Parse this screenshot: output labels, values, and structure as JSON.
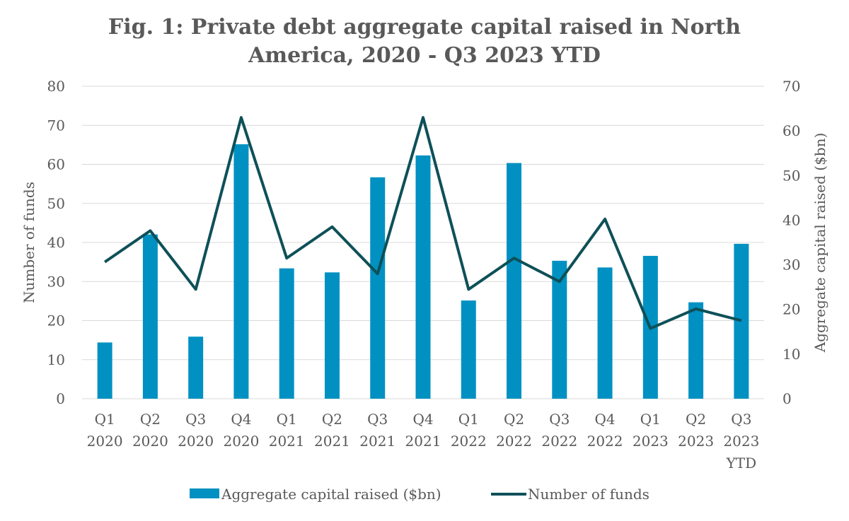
{
  "chart_data": {
    "type": "bar+line",
    "title": [
      "Fig. 1: Private debt aggregate capital raised in North",
      "America, 2020 - Q3 2023 YTD"
    ],
    "categories": [
      [
        "Q1",
        "2020"
      ],
      [
        "Q2",
        "2020"
      ],
      [
        "Q3",
        "2020"
      ],
      [
        "Q4",
        "2020"
      ],
      [
        "Q1",
        "2021"
      ],
      [
        "Q2",
        "2021"
      ],
      [
        "Q3",
        "2021"
      ],
      [
        "Q4",
        "2021"
      ],
      [
        "Q1",
        "2022"
      ],
      [
        "Q2",
        "2022"
      ],
      [
        "Q3",
        "2022"
      ],
      [
        "Q4",
        "2022"
      ],
      [
        "Q1",
        "2023"
      ],
      [
        "Q2",
        "2023"
      ],
      [
        "Q3",
        "2023",
        "YTD"
      ]
    ],
    "series": [
      {
        "name": "Aggregate capital raised ($bn)",
        "type": "bar",
        "axis": "right",
        "color": "#0091c2",
        "values": [
          12.6,
          36.8,
          13.9,
          57.0,
          29.2,
          28.3,
          49.6,
          54.5,
          22.0,
          52.8,
          30.9,
          29.4,
          32.0,
          21.6,
          34.7
        ]
      },
      {
        "name": "Number of funds",
        "type": "line",
        "axis": "left",
        "color": "#0e5058",
        "values": [
          35,
          43,
          28,
          72,
          36,
          44,
          32,
          72,
          28,
          36,
          30,
          46,
          18,
          23,
          20
        ]
      }
    ],
    "y_left": {
      "label": "Number of funds",
      "min": 0,
      "max": 80,
      "step": 10
    },
    "y_right": {
      "label": "Aggregate capital raised ($bn)",
      "min": 0,
      "max": 70,
      "step": 10
    },
    "legend": "bottom"
  }
}
